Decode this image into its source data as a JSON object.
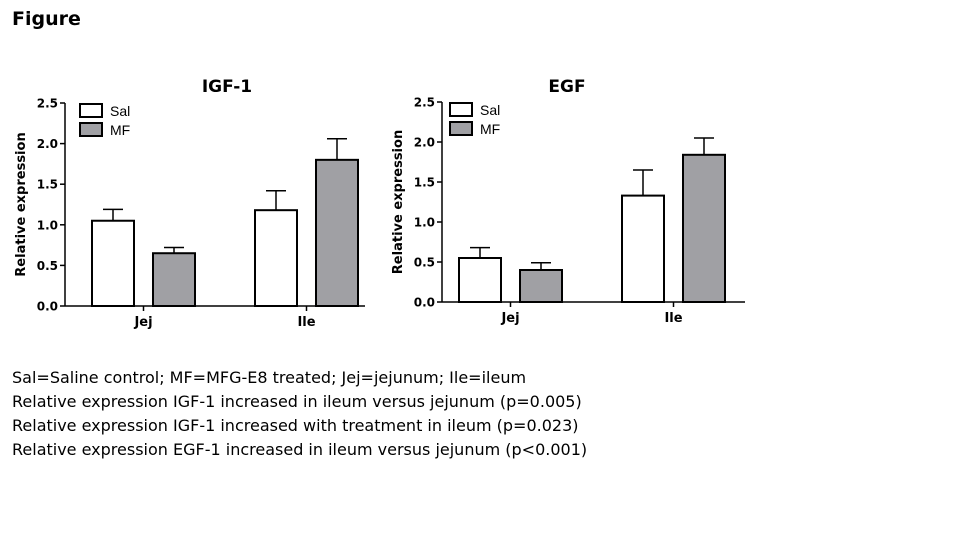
{
  "page": {
    "heading": "Figure",
    "notes": [
      "Sal=Saline control; MF=MFG-E8 treated; Jej=jejunum; Ile=ileum",
      "Relative expression IGF-1 increased in ileum versus jejunum (p=0.005)",
      "Relative expression IGF-1 increased with treatment in ileum (p=0.023)",
      "Relative expression EGF-1 increased in ileum versus jejunum (p<0.001)"
    ]
  },
  "colors": {
    "sal": "#ffffff",
    "mf": "#a0a0a4",
    "stroke": "#000000"
  },
  "chart_data": [
    {
      "type": "bar",
      "title": "IGF-1",
      "xlabel": "",
      "ylabel": "Relative expression",
      "categories": [
        "Jej",
        "Ile"
      ],
      "ylim": [
        0,
        2.5
      ],
      "yticks": [
        "0.0",
        "0.5",
        "1.0",
        "1.5",
        "2.0",
        "2.5"
      ],
      "legend_position": "top-left",
      "grid": false,
      "series": [
        {
          "name": "Sal",
          "values": [
            1.05,
            1.18
          ],
          "errors": [
            0.14,
            0.24
          ]
        },
        {
          "name": "MF",
          "values": [
            0.65,
            1.8
          ],
          "errors": [
            0.07,
            0.26
          ]
        }
      ]
    },
    {
      "type": "bar",
      "title": "EGF",
      "xlabel": "",
      "ylabel": "Relative expression",
      "categories": [
        "Jej",
        "Ile"
      ],
      "ylim": [
        0,
        2.5
      ],
      "yticks": [
        "0.0",
        "0.5",
        "1.0",
        "1.5",
        "2.0",
        "2.5"
      ],
      "legend_position": "top-left",
      "grid": false,
      "series": [
        {
          "name": "Sal",
          "values": [
            0.55,
            1.33
          ],
          "errors": [
            0.13,
            0.32
          ]
        },
        {
          "name": "MF",
          "values": [
            0.4,
            1.84
          ],
          "errors": [
            0.09,
            0.21
          ]
        }
      ]
    }
  ]
}
